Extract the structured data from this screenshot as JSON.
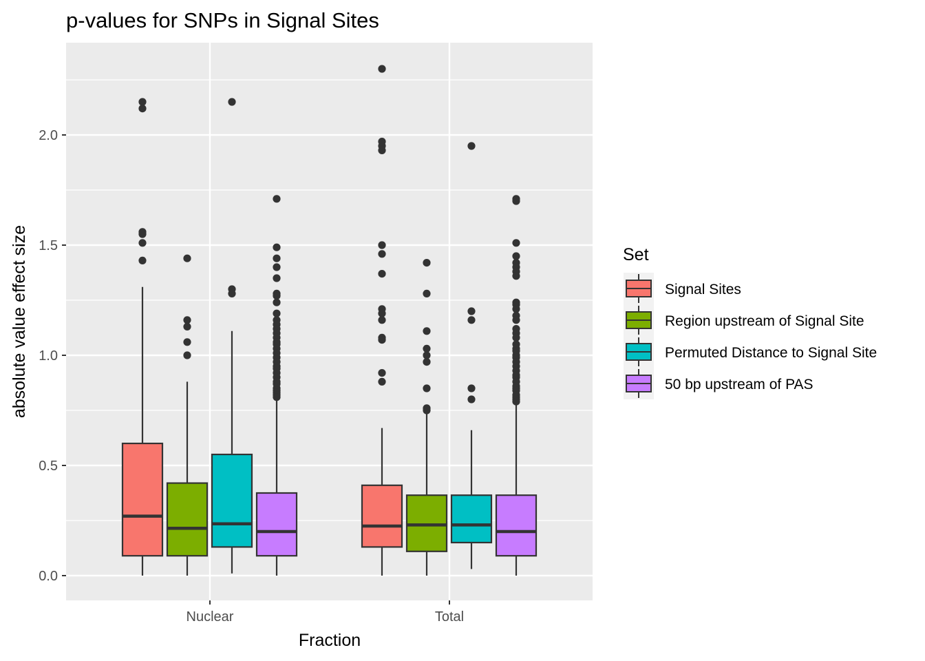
{
  "chart_data": {
    "type": "boxplot",
    "title": "p-values for SNPs in Signal Sites",
    "xlabel": "Fraction",
    "ylabel": "absolute value effect size",
    "categories": [
      "Nuclear",
      "Total"
    ],
    "ylim": [
      -0.11,
      2.42
    ],
    "yticks": [
      0.0,
      0.5,
      1.0,
      1.5,
      2.0
    ],
    "ytick_labels": [
      "0.0",
      "0.5",
      "1.0",
      "1.5",
      "2.0"
    ],
    "legend": {
      "title": "Set",
      "position": "right",
      "entries": [
        "Signal Sites",
        "Region upstream of Signal Site",
        "Permuted Distance to Signal Site",
        "50 bp upstream of PAS"
      ]
    },
    "series": [
      {
        "name": "Signal Sites",
        "color": "#F8766D",
        "boxes": [
          {
            "category": "Nuclear",
            "min": 0.0,
            "q1": 0.09,
            "median": 0.27,
            "q3": 0.6,
            "max": 1.31,
            "outliers": [
              2.15,
              2.12,
              1.56,
              1.55,
              1.51,
              1.43
            ]
          },
          {
            "category": "Total",
            "min": 0.0,
            "q1": 0.13,
            "median": 0.225,
            "q3": 0.41,
            "max": 0.67,
            "outliers": [
              2.3,
              1.97,
              1.95,
              1.93,
              1.5,
              1.46,
              1.37,
              1.21,
              1.19,
              1.16,
              1.08,
              1.07,
              0.92,
              0.88
            ]
          }
        ]
      },
      {
        "name": "Region upstream of Signal Site",
        "color": "#7CAE00",
        "boxes": [
          {
            "category": "Nuclear",
            "min": 0.0,
            "q1": 0.09,
            "median": 0.215,
            "q3": 0.42,
            "max": 0.88,
            "outliers": [
              1.44,
              1.16,
              1.13,
              1.06,
              1.0
            ]
          },
          {
            "category": "Total",
            "min": 0.0,
            "q1": 0.11,
            "median": 0.23,
            "q3": 0.365,
            "max": 0.74,
            "outliers": [
              1.42,
              1.28,
              1.11,
              1.03,
              1.0,
              0.97,
              0.85,
              0.76,
              0.75
            ]
          }
        ]
      },
      {
        "name": "Permuted Distance to Signal Site",
        "color": "#00BFC4",
        "boxes": [
          {
            "category": "Nuclear",
            "min": 0.01,
            "q1": 0.13,
            "median": 0.235,
            "q3": 0.55,
            "max": 1.11,
            "outliers": [
              2.15,
              1.3,
              1.28
            ]
          },
          {
            "category": "Total",
            "min": 0.03,
            "q1": 0.15,
            "median": 0.23,
            "q3": 0.365,
            "max": 0.66,
            "outliers": [
              1.95,
              1.2,
              1.16,
              0.85,
              0.8
            ]
          }
        ]
      },
      {
        "name": "50 bp upstream of PAS",
        "color": "#C77CFF",
        "boxes": [
          {
            "category": "Nuclear",
            "min": 0.0,
            "q1": 0.09,
            "median": 0.2,
            "q3": 0.375,
            "max": 0.8,
            "outliers": [
              1.71,
              1.49,
              1.44,
              1.4,
              1.35,
              1.28,
              1.27,
              1.24,
              1.19,
              1.16,
              1.14,
              1.12,
              1.1,
              1.08,
              1.06,
              1.05,
              1.03,
              1.01,
              0.99,
              0.97,
              0.95,
              0.94,
              0.92,
              0.9,
              0.88,
              0.87,
              0.85,
              0.84,
              0.83,
              0.82,
              0.81
            ]
          },
          {
            "category": "Total",
            "min": 0.0,
            "q1": 0.09,
            "median": 0.2,
            "q3": 0.365,
            "max": 0.78,
            "outliers": [
              1.71,
              1.7,
              1.51,
              1.45,
              1.42,
              1.4,
              1.38,
              1.36,
              1.24,
              1.23,
              1.21,
              1.18,
              1.16,
              1.12,
              1.1,
              1.08,
              1.05,
              1.03,
              1.02,
              1.0,
              0.99,
              0.97,
              0.95,
              0.93,
              0.91,
              0.9,
              0.88,
              0.86,
              0.85,
              0.84,
              0.82,
              0.81,
              0.8,
              0.79
            ]
          }
        ]
      }
    ]
  }
}
